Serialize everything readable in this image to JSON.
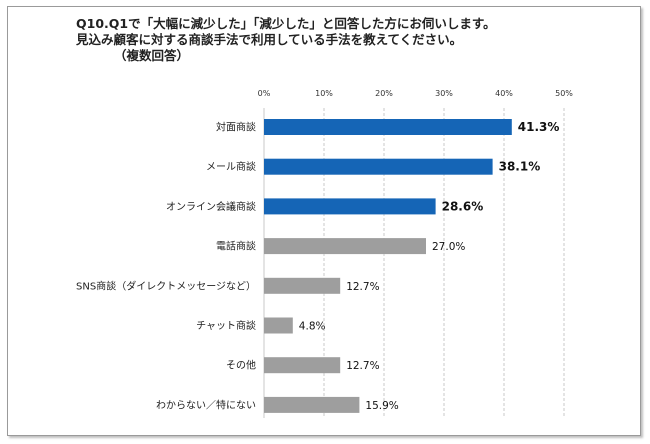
{
  "chart_data": {
    "type": "bar",
    "orientation": "horizontal",
    "title_lines": [
      "Q10.Q1で「大幅に減少した」「減少した」と回答した方にお伺いします。",
      "見込み顧客に対する商談手法で利用している手法を教えてください。",
      "（複数回答）"
    ],
    "categories": [
      "対面商談",
      "メール商談",
      "オンライン会議商談",
      "電話商談",
      "SNS商談（ダイレクトメッセージなど）",
      "チャット商談",
      "その他",
      "わからない／特にない"
    ],
    "values": [
      41.3,
      38.1,
      28.6,
      27.0,
      12.7,
      4.8,
      12.7,
      15.9
    ],
    "value_labels": [
      "41.3%",
      "38.1%",
      "28.6%",
      "27.0%",
      "12.7%",
      "4.8%",
      "12.7%",
      "15.9%"
    ],
    "highlighted": [
      true,
      true,
      true,
      false,
      false,
      false,
      false,
      false
    ],
    "xlim": [
      0,
      50
    ],
    "x_ticks": [
      "0%",
      "10%",
      "20%",
      "30%",
      "40%",
      "50%"
    ],
    "colors": {
      "highlight": "#1565b6",
      "default": "#9e9e9e",
      "gridline": "#bdbdbd"
    },
    "grid": true,
    "legend": "none"
  }
}
